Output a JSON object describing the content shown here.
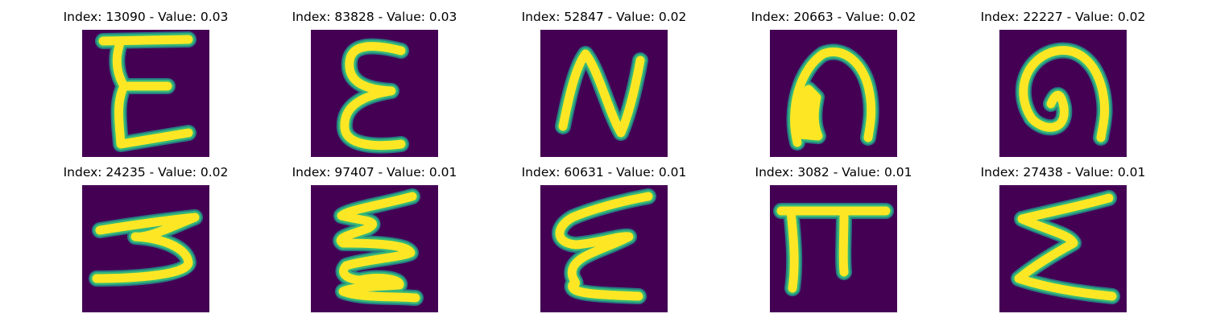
{
  "colors": {
    "background": "#440154",
    "stroke_core": "#fde725",
    "stroke_edge": "#35b779",
    "stroke_halo": "#21918c"
  },
  "panels": [
    {
      "index": "13090",
      "value": "0.03",
      "title": "Index: 13090 - Value: 0.03",
      "glyph": "letter-E"
    },
    {
      "index": "83828",
      "value": "0.03",
      "title": "Index: 83828 - Value: 0.03",
      "glyph": "epsilon"
    },
    {
      "index": "52847",
      "value": "0.02",
      "title": "Index: 52847 - Value: 0.02",
      "glyph": "letter-N"
    },
    {
      "index": "20663",
      "value": "0.02",
      "title": "Index: 20663 - Value: 0.02",
      "glyph": "arch"
    },
    {
      "index": "22227",
      "value": "0.02",
      "title": "Index: 22227 - Value: 0.02",
      "glyph": "arch-loop"
    },
    {
      "index": "24235",
      "value": "0.02",
      "title": "Index: 24235 - Value: 0.02",
      "glyph": "sideways-zigzag"
    },
    {
      "index": "97407",
      "value": "0.01",
      "title": "Index: 97407 - Value: 0.01",
      "glyph": "zigzag-E"
    },
    {
      "index": "60631",
      "value": "0.01",
      "title": "Index: 60631 - Value: 0.01",
      "glyph": "zigzag-E"
    },
    {
      "index": "3082",
      "value": "0.01",
      "title": "Index: 3082 - Value: 0.01",
      "glyph": "pi"
    },
    {
      "index": "27438",
      "value": "0.01",
      "title": "Index: 27438 - Value: 0.01",
      "glyph": "sigma"
    }
  ]
}
